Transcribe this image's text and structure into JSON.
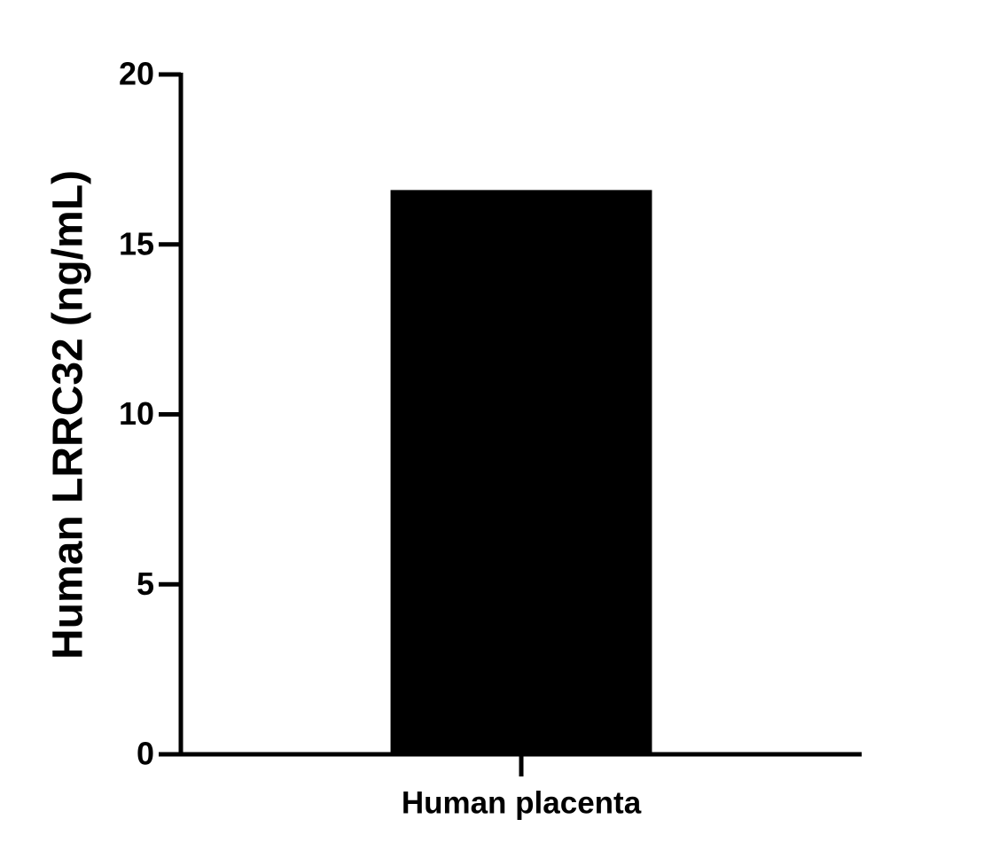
{
  "chart_data": {
    "type": "bar",
    "y_label": "Human LRRC32 (ng/mL)",
    "categories": [
      "Human placenta"
    ],
    "values": [
      16.6
    ],
    "color": "#000000",
    "ylim": [
      0,
      20
    ],
    "yticks": [
      0,
      5,
      10,
      15,
      20
    ],
    "grid": false
  }
}
